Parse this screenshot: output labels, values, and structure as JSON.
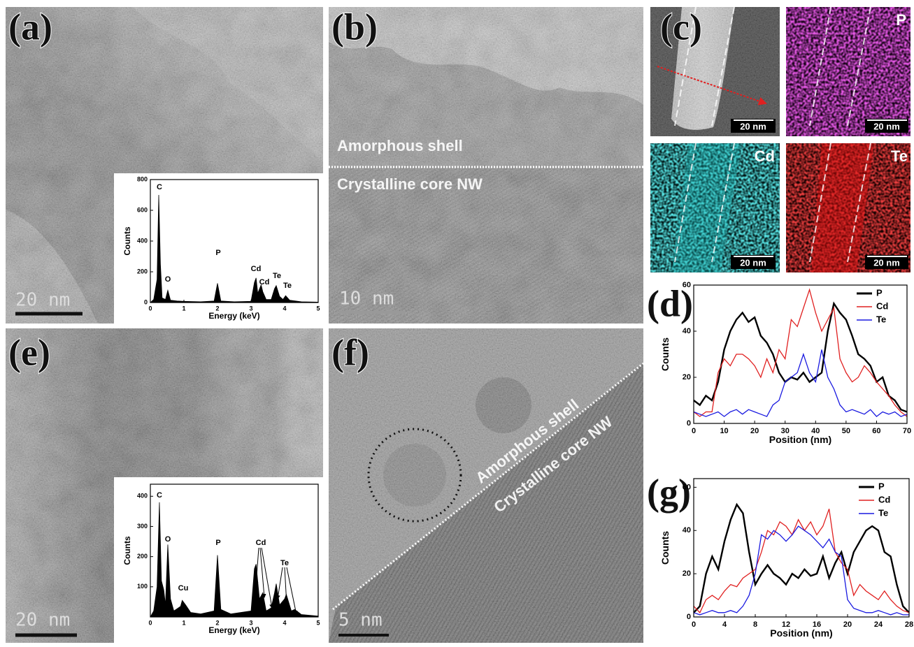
{
  "image_panels": [
    {
      "label": "(a)",
      "scale_bar": "20 nm"
    },
    {
      "label": "(b)",
      "scale_bar": "10 nm",
      "notes": [
        "Amorphous shell",
        "Crystalline core NW"
      ]
    },
    {
      "label": "(e)",
      "scale_bar": "20 nm"
    },
    {
      "label": "(f)",
      "scale_bar": "5 nm",
      "notes": [
        "Amorphous shell",
        "Crystalline core NW"
      ]
    }
  ],
  "maps": {
    "label": "(c)",
    "tiles": [
      {
        "scale_bar": "20 nm"
      },
      {
        "element": "P",
        "scale_bar": "20 nm"
      },
      {
        "element": "Cd",
        "scale_bar": "20 nm"
      },
      {
        "element": "Te",
        "scale_bar": "20 nm"
      }
    ]
  },
  "chart_data": [
    {
      "type": "area",
      "xlabel": "Energy (keV)",
      "ylabel": "Counts",
      "color": "#000000",
      "x": [
        0,
        0.1,
        0.2,
        0.25,
        0.3,
        0.35,
        0.45,
        0.52,
        0.6,
        0.8,
        1.0,
        1.5,
        1.9,
        2.0,
        2.1,
        2.5,
        3.0,
        3.1,
        3.15,
        3.2,
        3.3,
        3.35,
        3.45,
        3.6,
        3.7,
        3.75,
        3.85,
        3.95,
        4.03,
        4.15,
        4.5,
        5.0
      ],
      "values": [
        0,
        20,
        150,
        700,
        250,
        30,
        20,
        80,
        15,
        10,
        8,
        5,
        10,
        125,
        10,
        5,
        8,
        130,
        160,
        60,
        115,
        70,
        20,
        20,
        90,
        110,
        40,
        20,
        45,
        15,
        5,
        3
      ],
      "xlim": [
        0,
        5
      ],
      "xticks": [
        0,
        1,
        2,
        3,
        4,
        5
      ],
      "ylim": [
        0,
        800
      ],
      "yticks": [
        0,
        200,
        400,
        600,
        800
      ],
      "annotations": [
        "C",
        "O",
        "P",
        "Cd",
        "Cd",
        "Te",
        "Te"
      ]
    },
    {
      "type": "line",
      "panel_label": "(d)",
      "xlabel": "Position (nm)",
      "ylabel": "Counts",
      "legend": "upper right",
      "x": [
        0,
        2,
        4,
        6,
        8,
        10,
        12,
        14,
        16,
        18,
        20,
        22,
        24,
        26,
        28,
        30,
        32,
        34,
        36,
        38,
        40,
        42,
        44,
        46,
        48,
        50,
        52,
        54,
        56,
        58,
        60,
        62,
        64,
        66,
        68,
        70
      ],
      "series": [
        {
          "name": "P",
          "color": "#000000",
          "values": [
            10,
            8,
            12,
            10,
            18,
            32,
            40,
            45,
            48,
            44,
            46,
            38,
            35,
            30,
            22,
            18,
            20,
            19,
            22,
            18,
            20,
            22,
            40,
            52,
            48,
            45,
            38,
            30,
            28,
            25,
            18,
            20,
            12,
            10,
            6,
            5
          ]
        },
        {
          "name": "Cd",
          "color": "#e02020",
          "values": [
            5,
            3,
            5,
            5,
            22,
            28,
            25,
            30,
            30,
            28,
            25,
            20,
            28,
            22,
            32,
            28,
            45,
            42,
            50,
            58,
            48,
            40,
            45,
            50,
            28,
            22,
            18,
            20,
            25,
            22,
            18,
            15,
            12,
            8,
            5,
            3
          ]
        },
        {
          "name": "Te",
          "color": "#1a1ae0",
          "values": [
            5,
            4,
            3,
            4,
            5,
            3,
            5,
            6,
            4,
            6,
            5,
            4,
            3,
            8,
            10,
            18,
            20,
            22,
            30,
            22,
            18,
            32,
            20,
            15,
            8,
            5,
            6,
            5,
            4,
            6,
            3,
            5,
            4,
            5,
            3,
            4
          ]
        }
      ],
      "xlim": [
        0,
        70
      ],
      "xticks": [
        0,
        10,
        20,
        30,
        40,
        50,
        60,
        70
      ],
      "ylim": [
        0,
        60
      ],
      "yticks": [
        0,
        20,
        40,
        60
      ]
    },
    {
      "type": "area",
      "xlabel": "Energy (keV)",
      "ylabel": "Counts",
      "color": "#000000",
      "x": [
        0,
        0.1,
        0.2,
        0.27,
        0.33,
        0.4,
        0.45,
        0.52,
        0.6,
        0.7,
        0.9,
        0.95,
        1.05,
        1.2,
        1.5,
        1.9,
        2.0,
        2.1,
        2.4,
        3.0,
        3.1,
        3.15,
        3.25,
        3.35,
        3.45,
        3.6,
        3.7,
        3.75,
        3.85,
        4.0,
        4.05,
        4.2,
        4.3,
        4.5,
        5.0
      ],
      "values": [
        0,
        20,
        100,
        380,
        120,
        90,
        40,
        240,
        60,
        20,
        35,
        55,
        40,
        15,
        10,
        20,
        205,
        25,
        10,
        20,
        160,
        175,
        60,
        80,
        20,
        30,
        80,
        110,
        40,
        60,
        75,
        20,
        25,
        8,
        3
      ],
      "xlim": [
        0,
        5
      ],
      "xticks": [
        0,
        1,
        2,
        3,
        4,
        5
      ],
      "ylim": [
        0,
        440
      ],
      "yticks": [
        100,
        200,
        300,
        400
      ],
      "annotations": [
        "C",
        "O",
        "Cu",
        "P",
        "Cd",
        "Te"
      ]
    },
    {
      "type": "line",
      "panel_label": "(g)",
      "xlabel": "Position (nm)",
      "ylabel": "Counts",
      "legend": "upper right",
      "x": [
        0,
        0.8,
        1.6,
        2.4,
        3.2,
        4,
        4.8,
        5.6,
        6.4,
        7.2,
        8,
        8.8,
        9.6,
        10.4,
        11.2,
        12,
        12.8,
        13.6,
        14.4,
        15.2,
        16,
        16.8,
        17.6,
        18.4,
        19.2,
        20,
        20.8,
        21.6,
        22.4,
        23.2,
        24,
        24.8,
        25.6,
        26.4,
        27.2,
        28
      ],
      "series": [
        {
          "name": "P",
          "color": "#000000",
          "values": [
            2,
            5,
            20,
            28,
            22,
            35,
            45,
            52,
            48,
            30,
            15,
            20,
            24,
            20,
            18,
            15,
            20,
            18,
            22,
            19,
            20,
            28,
            18,
            25,
            30,
            20,
            30,
            35,
            40,
            42,
            40,
            30,
            28,
            15,
            5,
            2
          ]
        },
        {
          "name": "Cd",
          "color": "#e02020",
          "values": [
            5,
            2,
            8,
            10,
            8,
            12,
            15,
            14,
            18,
            20,
            22,
            30,
            40,
            38,
            44,
            42,
            38,
            45,
            40,
            44,
            38,
            42,
            50,
            30,
            25,
            22,
            10,
            15,
            12,
            10,
            8,
            12,
            8,
            5,
            3,
            2
          ]
        },
        {
          "name": "Te",
          "color": "#1a1ae0",
          "values": [
            2,
            1,
            2,
            3,
            2,
            2,
            3,
            2,
            5,
            10,
            20,
            38,
            36,
            40,
            38,
            35,
            38,
            42,
            40,
            38,
            35,
            32,
            36,
            30,
            28,
            8,
            4,
            3,
            2,
            2,
            3,
            2,
            1,
            2,
            1,
            1
          ]
        }
      ],
      "xlim": [
        0,
        28
      ],
      "xticks": [
        0,
        4,
        8,
        12,
        16,
        20,
        24,
        28
      ],
      "ylim": [
        0,
        64
      ],
      "yticks": [
        0,
        20,
        40,
        60
      ]
    }
  ]
}
